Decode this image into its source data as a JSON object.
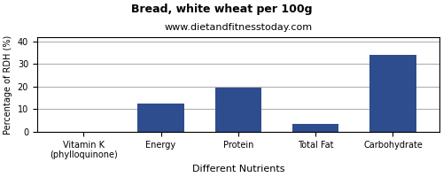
{
  "chart_data": {
    "type": "bar",
    "title": "Bread, white wheat per 100g",
    "subtitle": "www.dietandfitnesstoday.com",
    "xlabel": "Different Nutrients",
    "ylabel": "Percentage of RDH (%)",
    "categories": [
      "Vitamin K (phylloquinone)",
      "Energy",
      "Protein",
      "Total Fat",
      "Carbohydrate"
    ],
    "values": [
      0,
      12.5,
      19.5,
      3.5,
      34.0
    ],
    "color": "#2e4d8e",
    "ylim": [
      0,
      42
    ],
    "yticks": [
      0,
      10,
      20,
      30,
      40
    ],
    "grid": true
  }
}
